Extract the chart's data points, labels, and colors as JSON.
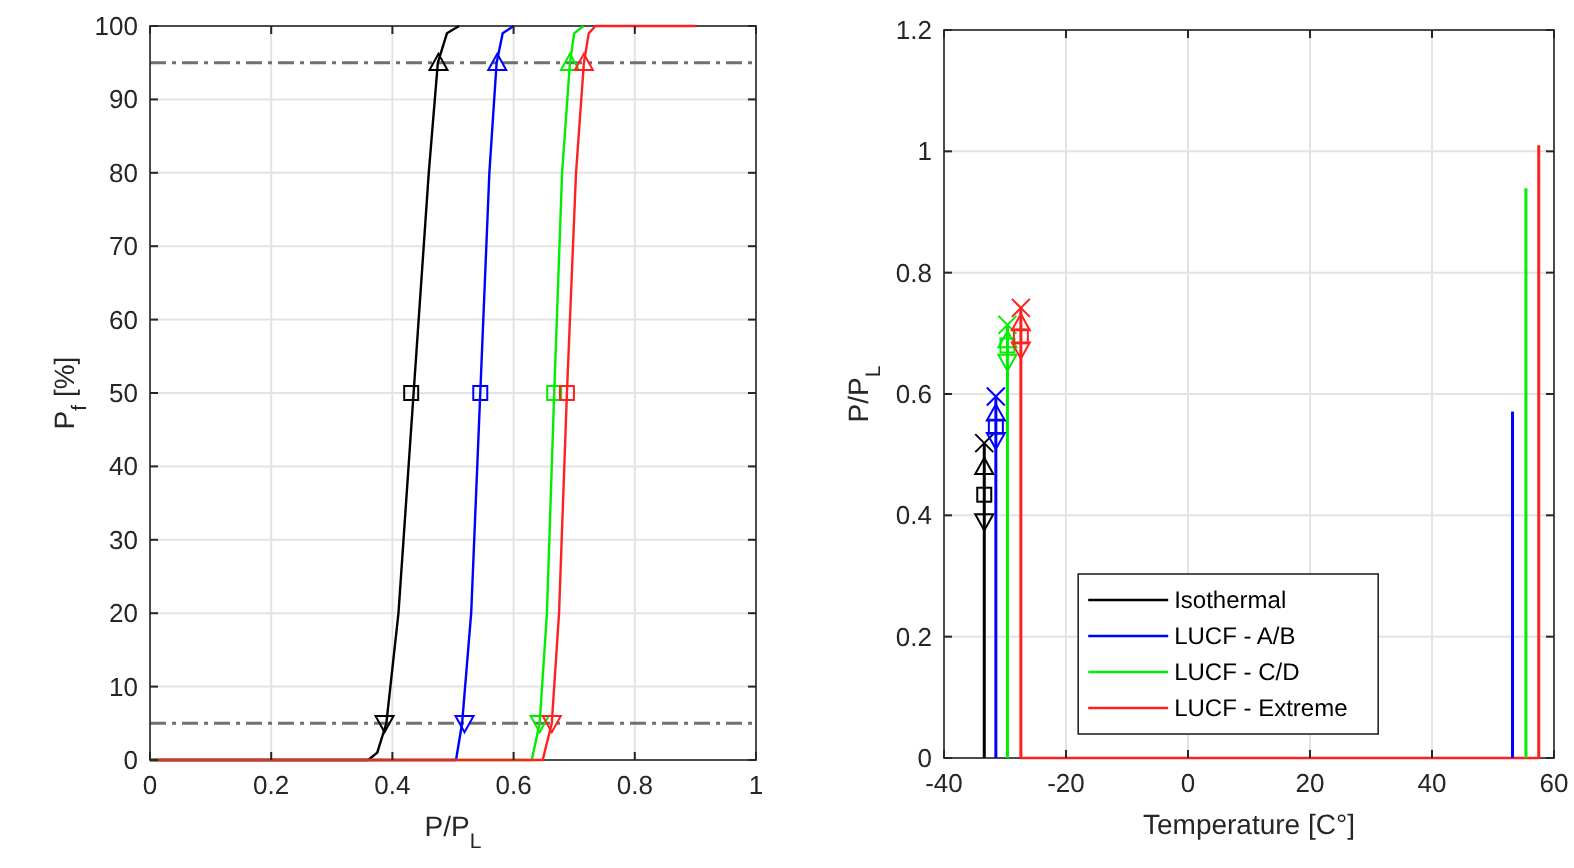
{
  "chart_data": [
    {
      "type": "line",
      "xlabel": "P/P$_{L}$",
      "ylabel": "P$_{f}$ [%]",
      "xlim": [
        0,
        1
      ],
      "ylim": [
        0,
        100
      ],
      "xticks": [
        0,
        0.2,
        0.4,
        0.6,
        0.8,
        1
      ],
      "yticks": [
        0,
        10,
        20,
        30,
        40,
        50,
        60,
        70,
        80,
        90,
        100
      ],
      "grid": true,
      "legend": false,
      "ref_lines": [
        {
          "axis": "y",
          "value": 5,
          "color": "#707070",
          "line_style": "dashdot"
        },
        {
          "axis": "y",
          "value": 95,
          "color": "#707070",
          "line_style": "dashdot"
        }
      ],
      "series": [
        {
          "color": "#000000",
          "x": [
            0,
            0.36,
            0.375,
            0.39,
            0.41,
            0.435,
            0.46,
            0.475,
            0.49,
            0.51
          ],
          "values": [
            0,
            0,
            1,
            5,
            20,
            50,
            80,
            95,
            99,
            100
          ]
        },
        {
          "color": "#0000ff",
          "x": [
            0,
            0.505,
            0.515,
            0.53,
            0.545,
            0.56,
            0.572,
            0.582,
            0.6
          ],
          "values": [
            0,
            0,
            5,
            20,
            50,
            80,
            95,
            99,
            100
          ]
        },
        {
          "color": "#00ee00",
          "x": [
            0,
            0.63,
            0.643,
            0.655,
            0.667,
            0.68,
            0.693,
            0.7,
            0.715
          ],
          "values": [
            0,
            0,
            5,
            20,
            50,
            80,
            95,
            99,
            100
          ]
        },
        {
          "color": "#ff2020",
          "x": [
            0,
            0.648,
            0.663,
            0.675,
            0.688,
            0.703,
            0.716,
            0.724,
            0.735,
            0.9
          ],
          "values": [
            0,
            0,
            5,
            20,
            50,
            80,
            95,
            99,
            100,
            100
          ]
        },
        {
          "type": "scatter",
          "marker": "triangle_down",
          "color": "#000000",
          "x": [
            0.387
          ],
          "values": [
            5
          ]
        },
        {
          "type": "scatter",
          "marker": "square",
          "color": "#000000",
          "x": [
            0.431
          ],
          "values": [
            50
          ]
        },
        {
          "type": "scatter",
          "marker": "triangle",
          "color": "#000000",
          "x": [
            0.476
          ],
          "values": [
            95
          ]
        },
        {
          "type": "scatter",
          "marker": "triangle_down",
          "color": "#0000ff",
          "x": [
            0.519
          ],
          "values": [
            5
          ]
        },
        {
          "type": "scatter",
          "marker": "square",
          "color": "#0000ff",
          "x": [
            0.545
          ],
          "values": [
            50
          ]
        },
        {
          "type": "scatter",
          "marker": "triangle",
          "color": "#0000ff",
          "x": [
            0.573
          ],
          "values": [
            95
          ]
        },
        {
          "type": "scatter",
          "marker": "triangle_down",
          "color": "#00ee00",
          "x": [
            0.643
          ],
          "values": [
            5
          ]
        },
        {
          "type": "scatter",
          "marker": "square",
          "color": "#00ee00",
          "x": [
            0.667
          ],
          "values": [
            50
          ]
        },
        {
          "type": "scatter",
          "marker": "triangle",
          "color": "#00ee00",
          "x": [
            0.693
          ],
          "values": [
            95
          ]
        },
        {
          "type": "scatter",
          "marker": "triangle_down",
          "color": "#ff2020",
          "x": [
            0.663
          ],
          "values": [
            5
          ]
        },
        {
          "type": "scatter",
          "marker": "square",
          "color": "#ff2020",
          "x": [
            0.688
          ],
          "values": [
            50
          ]
        },
        {
          "type": "scatter",
          "marker": "triangle",
          "color": "#ff2020",
          "x": [
            0.716
          ],
          "values": [
            95
          ]
        }
      ]
    },
    {
      "type": "bar",
      "xlabel": "Temperature [C°]",
      "ylabel": "P/P$_{L}$",
      "xlim": [
        -40,
        60
      ],
      "ylim": [
        0,
        1.2
      ],
      "xticks": [
        -40,
        -20,
        0,
        20,
        40,
        60
      ],
      "yticks": [
        0,
        0.2,
        0.4,
        0.6,
        0.8,
        1,
        1.2
      ],
      "grid": true,
      "legend": "bottom",
      "series": [
        {
          "type": "line",
          "color": "#ff2020",
          "x": [
            -27.4,
            57.5
          ],
          "values": [
            0,
            0
          ]
        },
        {
          "name": "Isothermal",
          "color": "#000000",
          "x": [
            -33.4
          ],
          "values": [
            0.519
          ]
        },
        {
          "name": "LUCF - A/B",
          "color": "#0000ff",
          "x": [
            -31.5,
            53.2
          ],
          "values": [
            0.596,
            0.571
          ]
        },
        {
          "name": "LUCF - C/D",
          "color": "#00ee00",
          "x": [
            -29.6,
            55.4
          ],
          "values": [
            0.714,
            0.939
          ]
        },
        {
          "name": "LUCF - Extreme",
          "color": "#ff2020",
          "x": [
            -27.4,
            57.5
          ],
          "values": [
            0.742,
            1.01
          ]
        },
        {
          "type": "scatter",
          "marker": "cross",
          "color": "#000000",
          "x": [
            -33.4
          ],
          "values": [
            0.519
          ]
        },
        {
          "type": "scatter",
          "marker": "triangle",
          "color": "#000000",
          "x": [
            -33.4
          ],
          "values": [
            0.48
          ]
        },
        {
          "type": "scatter",
          "marker": "square",
          "color": "#000000",
          "x": [
            -33.4
          ],
          "values": [
            0.434
          ]
        },
        {
          "type": "scatter",
          "marker": "triangle_down",
          "color": "#000000",
          "x": [
            -33.4
          ],
          "values": [
            0.39
          ]
        },
        {
          "type": "scatter",
          "marker": "cross",
          "color": "#0000ff",
          "x": [
            -31.5
          ],
          "values": [
            0.596
          ]
        },
        {
          "type": "scatter",
          "marker": "triangle",
          "color": "#0000ff",
          "x": [
            -31.5
          ],
          "values": [
            0.568
          ]
        },
        {
          "type": "scatter",
          "marker": "square",
          "color": "#0000ff",
          "x": [
            -31.5
          ],
          "values": [
            0.546
          ]
        },
        {
          "type": "scatter",
          "marker": "triangle_down",
          "color": "#0000ff",
          "x": [
            -31.5
          ],
          "values": [
            0.524
          ]
        },
        {
          "type": "scatter",
          "marker": "cross",
          "color": "#00ee00",
          "x": [
            -29.6
          ],
          "values": [
            0.714
          ]
        },
        {
          "type": "scatter",
          "marker": "triangle",
          "color": "#00ee00",
          "x": [
            -29.6
          ],
          "values": [
            0.689
          ]
        },
        {
          "type": "scatter",
          "marker": "square",
          "color": "#00ee00",
          "x": [
            -29.6
          ],
          "values": [
            0.68
          ]
        },
        {
          "type": "scatter",
          "marker": "triangle_down",
          "color": "#00ee00",
          "x": [
            -29.6
          ],
          "values": [
            0.653
          ]
        },
        {
          "type": "scatter",
          "marker": "cross",
          "color": "#ff2020",
          "x": [
            -27.4
          ],
          "values": [
            0.742
          ]
        },
        {
          "type": "scatter",
          "marker": "triangle",
          "color": "#ff2020",
          "x": [
            -27.4
          ],
          "values": [
            0.717
          ]
        },
        {
          "type": "scatter",
          "marker": "square",
          "color": "#ff2020",
          "x": [
            -27.4
          ],
          "values": [
            0.695
          ]
        },
        {
          "type": "scatter",
          "marker": "triangle_down",
          "color": "#ff2020",
          "x": [
            -27.4
          ],
          "values": [
            0.673
          ]
        }
      ]
    }
  ]
}
